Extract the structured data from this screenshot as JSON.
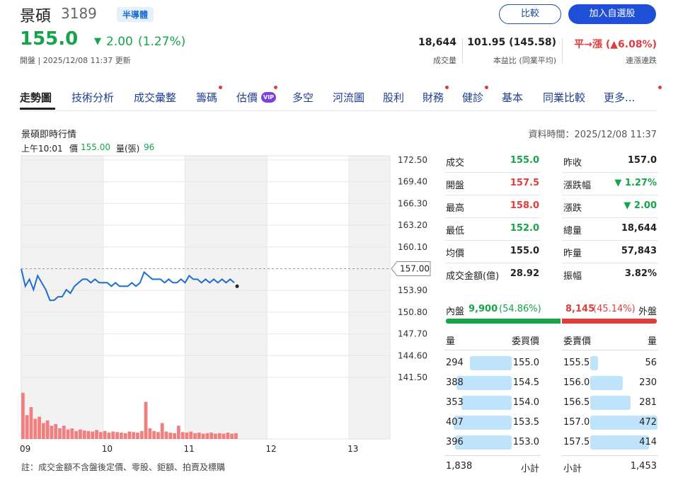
{
  "header": {
    "name": "景碩",
    "code": "3189",
    "tag": "半導體",
    "compare": "比較",
    "watch": "加入自選股",
    "price": "155.0",
    "change": "2.00",
    "change_pct": "(1.27%)",
    "status": "開盤 | 2025/12/08 11:37 更新",
    "stats": [
      {
        "value": "18,644",
        "label": "成交量"
      },
      {
        "value": "101.95 (145.58)",
        "label": "本益比 (同業平均)"
      },
      {
        "value": "平→漲 (▲6.08%)",
        "label": "連漲連跌",
        "color": "#e03c3c"
      }
    ]
  },
  "tabs": [
    {
      "label": "走勢圖"
    },
    {
      "label": "技術分析"
    },
    {
      "label": "成交彙整"
    },
    {
      "label": "籌碼",
      "dot": true
    },
    {
      "label": "估價",
      "badge": "VIP",
      "dot": true
    },
    {
      "label": "多空"
    },
    {
      "label": "河流圖"
    },
    {
      "label": "股利"
    },
    {
      "label": "財務",
      "dot": true
    },
    {
      "label": "健診",
      "dot": true
    },
    {
      "label": "基本"
    },
    {
      "label": "同業比較"
    },
    {
      "label": "更多...",
      "dot": true
    }
  ],
  "section": {
    "title": "景碩即時行情",
    "updated": "資料時間：2025/12/08 11:37",
    "hover": {
      "time": "上午10:01",
      "price_label": "價",
      "price": "155.00",
      "vol_label": "量(張)",
      "vol": "96"
    }
  },
  "chart": {
    "type": "line",
    "color": "#1f6fd1",
    "volume_color": "#f08080",
    "xlim": [
      9,
      13.5
    ],
    "xticks": [
      {
        "value": 9,
        "label": "09"
      },
      {
        "value": 10,
        "label": "10"
      },
      {
        "value": 11,
        "label": "11"
      },
      {
        "value": 12,
        "label": "12"
      },
      {
        "value": 13,
        "label": "13"
      }
    ],
    "ylim": [
      141.5,
      172.5
    ],
    "yticks": [
      {
        "value": 172.5,
        "label": "172.50"
      },
      {
        "value": 169.4,
        "label": "169.40"
      },
      {
        "value": 166.3,
        "label": "166.30"
      },
      {
        "value": 163.2,
        "label": "163.20"
      },
      {
        "value": 160.1,
        "label": "160.10"
      },
      {
        "value": 153.9,
        "label": "153.90"
      },
      {
        "value": 150.8,
        "label": "150.80"
      },
      {
        "value": 147.7,
        "label": "147.70"
      },
      {
        "value": 144.6,
        "label": "144.60"
      },
      {
        "value": 141.5,
        "label": "141.50"
      }
    ],
    "reference": {
      "value": 157,
      "label": "157.00"
    },
    "volume_ylim": [
      0,
      1000
    ],
    "x": [
      9,
      9.05,
      9.1,
      9.15,
      9.2,
      9.25,
      9.3,
      9.35,
      9.4,
      9.45,
      9.5,
      9.55,
      9.6,
      9.65,
      9.7,
      9.75,
      9.8,
      9.85,
      9.9,
      9.95,
      10,
      10.05,
      10.1,
      10.15,
      10.2,
      10.25,
      10.3,
      10.35,
      10.4,
      10.45,
      10.5,
      10.55,
      10.6,
      10.65,
      10.7,
      10.75,
      10.8,
      10.85,
      10.9,
      10.95,
      11,
      11.05,
      11.1,
      11.15,
      11.2,
      11.25,
      11.3,
      11.35,
      11.4,
      11.45,
      11.5,
      11.55,
      11.6
    ],
    "values": [
      157.0,
      154.5,
      155.5,
      154.0,
      156.0,
      155.0,
      154.0,
      152.5,
      152.5,
      153.0,
      153.0,
      154.0,
      153.5,
      154.5,
      155.0,
      155.5,
      155.5,
      155.0,
      155.5,
      155.0,
      155.0,
      155.0,
      154.5,
      155.0,
      154.5,
      154.5,
      154.5,
      155.0,
      154.5,
      155.0,
      156.5,
      156.0,
      155.5,
      155.5,
      155.5,
      155.0,
      155.5,
      155.0,
      155.0,
      155.5,
      155.0,
      156.0,
      155.5,
      155.5,
      155.0,
      155.5,
      155.0,
      155.5,
      155.0,
      155.5,
      155.0,
      155.5,
      155.0
    ],
    "volume": [
      870,
      450,
      600,
      380,
      420,
      300,
      350,
      250,
      280,
      200,
      250,
      180,
      200,
      150,
      180,
      160,
      150,
      140,
      170,
      130,
      150,
      120,
      140,
      130,
      120,
      110,
      140,
      130,
      120,
      150,
      700,
      200,
      150,
      130,
      300,
      140,
      120,
      110,
      250,
      130,
      120,
      140,
      110,
      120,
      100,
      110,
      120,
      100,
      110,
      100,
      120,
      100,
      110
    ]
  },
  "quote": {
    "left": [
      {
        "label": "成交",
        "value": "155.0",
        "color": "#16a34a"
      },
      {
        "label": "開盤",
        "value": "157.5",
        "color": "#e03c3c"
      },
      {
        "label": "最高",
        "value": "158.0",
        "color": "#e03c3c"
      },
      {
        "label": "最低",
        "value": "152.0",
        "color": "#16a34a"
      },
      {
        "label": "均價",
        "value": "155.0",
        "color": "#222"
      },
      {
        "label": "成交金額(億)",
        "value": "28.92",
        "color": "#222"
      }
    ],
    "right": [
      {
        "label": "昨收",
        "value": "157.0",
        "color": "#222"
      },
      {
        "label": "漲跌幅",
        "value": "▼ 1.27%",
        "color": "#16a34a"
      },
      {
        "label": "漲跌",
        "value": "▼ 2.00",
        "color": "#16a34a"
      },
      {
        "label": "總量",
        "value": "18,644",
        "color": "#222"
      },
      {
        "label": "昨量",
        "value": "57,843",
        "color": "#222"
      },
      {
        "label": "振幅",
        "value": "3.82%",
        "color": "#222"
      }
    ]
  },
  "pressure": {
    "inner": {
      "label": "內盤",
      "volume": "9,900",
      "pct": "(54.86%)"
    },
    "outer": {
      "label": "外盤",
      "volume": "8,145",
      "pct": "(45.14%)"
    }
  },
  "book": {
    "headers": [
      "量",
      "委買價",
      "委賣價",
      "量"
    ],
    "bids": [
      {
        "volume": "294",
        "price": "155.0"
      },
      {
        "volume": "388",
        "price": "154.5"
      },
      {
        "volume": "353",
        "price": "154.0"
      },
      {
        "volume": "407",
        "price": "153.5"
      },
      {
        "volume": "396",
        "price": "153.0"
      }
    ],
    "asks": [
      {
        "price": "155.5",
        "volume": "56"
      },
      {
        "price": "156.0",
        "volume": "230"
      },
      {
        "price": "156.5",
        "volume": "281"
      },
      {
        "price": "157.0",
        "volume": "472"
      },
      {
        "price": "157.5",
        "volume": "414"
      }
    ],
    "bid_total": "1,838",
    "subtotal": "小計",
    "ask_total": "1,453"
  },
  "note": "註：成交金額不含盤後定價、零股、鉅額、拍賣及標購"
}
